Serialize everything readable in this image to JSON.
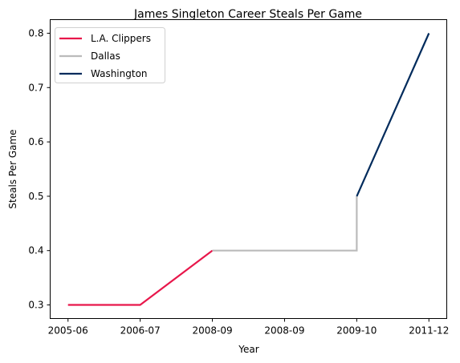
{
  "chart_data": {
    "type": "line",
    "title": "James Singleton  Career Steals Per Game",
    "xlabel": "Year",
    "ylabel": "Steals Per Game",
    "categories": [
      "2005-06",
      "2006-07",
      "2008-09",
      "2008-09",
      "2009-10",
      "2011-12"
    ],
    "ylim": [
      0.275,
      0.825
    ],
    "yticks": [
      0.3,
      0.4,
      0.5,
      0.6,
      0.7,
      0.8
    ],
    "ytick_labels": [
      "0.3",
      "0.4",
      "0.5",
      "0.6",
      "0.7",
      "0.8"
    ],
    "grid": false,
    "legend": "top-left",
    "series": [
      {
        "name": "L.A. Clippers",
        "color": "#E8174B",
        "points": [
          [
            0,
            0.3
          ],
          [
            1,
            0.3
          ],
          [
            2,
            0.4
          ]
        ]
      },
      {
        "name": "Dallas",
        "color": "#BBBBBB",
        "points": [
          [
            2,
            0.4
          ],
          [
            3,
            0.4
          ],
          [
            4,
            0.4
          ],
          [
            4,
            0.5
          ]
        ]
      },
      {
        "name": "Washington",
        "color": "#002B5C",
        "points": [
          [
            4,
            0.5
          ],
          [
            5,
            0.8
          ]
        ]
      }
    ]
  }
}
